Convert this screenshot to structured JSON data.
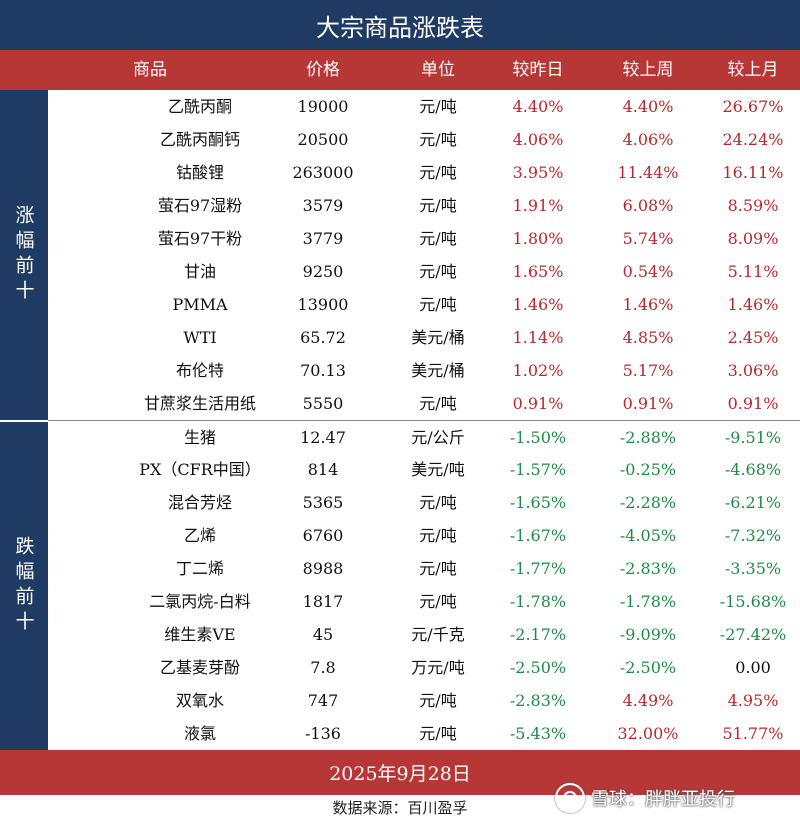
{
  "title": "大宗商品涨跌表",
  "headers": {
    "name": "商品",
    "price": "价格",
    "unit": "单位",
    "daily": "较昨日",
    "weekly": "较上周",
    "monthly": "较上月"
  },
  "groups": {
    "gainers_label": "涨幅前十",
    "losers_label": "跌幅前十"
  },
  "gainers": [
    {
      "name": "乙酰丙酮",
      "price": "19000",
      "unit": "元/吨",
      "daily": "4.40%",
      "weekly": "4.40%",
      "monthly": "26.67%"
    },
    {
      "name": "乙酰丙酮钙",
      "price": "20500",
      "unit": "元/吨",
      "daily": "4.06%",
      "weekly": "4.06%",
      "monthly": "24.24%"
    },
    {
      "name": "钴酸锂",
      "price": "263000",
      "unit": "元/吨",
      "daily": "3.95%",
      "weekly": "11.44%",
      "monthly": "16.11%"
    },
    {
      "name": "萤石97湿粉",
      "price": "3579",
      "unit": "元/吨",
      "daily": "1.91%",
      "weekly": "6.08%",
      "monthly": "8.59%"
    },
    {
      "name": "萤石97干粉",
      "price": "3779",
      "unit": "元/吨",
      "daily": "1.80%",
      "weekly": "5.74%",
      "monthly": "8.09%"
    },
    {
      "name": "甘油",
      "price": "9250",
      "unit": "元/吨",
      "daily": "1.65%",
      "weekly": "0.54%",
      "monthly": "5.11%"
    },
    {
      "name": "PMMA",
      "price": "13900",
      "unit": "元/吨",
      "daily": "1.46%",
      "weekly": "1.46%",
      "monthly": "1.46%"
    },
    {
      "name": "WTI",
      "price": "65.72",
      "unit": "美元/桶",
      "daily": "1.14%",
      "weekly": "4.85%",
      "monthly": "2.45%"
    },
    {
      "name": "布伦特",
      "price": "70.13",
      "unit": "美元/桶",
      "daily": "1.02%",
      "weekly": "5.17%",
      "monthly": "3.06%"
    },
    {
      "name": "甘蔗浆生活用纸",
      "price": "5550",
      "unit": "元/吨",
      "daily": "0.91%",
      "weekly": "0.91%",
      "monthly": "0.91%"
    }
  ],
  "losers": [
    {
      "name": "生猪",
      "price": "12.47",
      "unit": "元/公斤",
      "daily": "-1.50%",
      "weekly": "-2.88%",
      "monthly": "-9.51%"
    },
    {
      "name": "PX（CFR中国）",
      "price": "814",
      "unit": "美元/吨",
      "daily": "-1.57%",
      "weekly": "-0.25%",
      "monthly": "-4.68%"
    },
    {
      "name": "混合芳烃",
      "price": "5365",
      "unit": "元/吨",
      "daily": "-1.65%",
      "weekly": "-2.28%",
      "monthly": "-6.21%"
    },
    {
      "name": "乙烯",
      "price": "6760",
      "unit": "元/吨",
      "daily": "-1.67%",
      "weekly": "-4.05%",
      "monthly": "-7.32%"
    },
    {
      "name": "丁二烯",
      "price": "8988",
      "unit": "元/吨",
      "daily": "-1.77%",
      "weekly": "-2.83%",
      "monthly": "-3.35%"
    },
    {
      "name": "二氯丙烷-白料",
      "price": "1817",
      "unit": "元/吨",
      "daily": "-1.78%",
      "weekly": "-1.78%",
      "monthly": "-15.68%"
    },
    {
      "name": "维生素VE",
      "price": "45",
      "unit": "元/千克",
      "daily": "-2.17%",
      "weekly": "-9.09%",
      "monthly": "-27.42%"
    },
    {
      "name": "乙基麦芽酚",
      "price": "7.8",
      "unit": "万元/吨",
      "daily": "-2.50%",
      "weekly": "-2.50%",
      "monthly": "0.00"
    },
    {
      "name": "双氧水",
      "price": "747",
      "unit": "元/吨",
      "daily": "-2.83%",
      "weekly": "4.49%",
      "monthly": "4.95%"
    },
    {
      "name": "液氯",
      "price": "-136",
      "unit": "元/吨",
      "daily": "-5.43%",
      "weekly": "32.00%",
      "monthly": "51.77%"
    }
  ],
  "date": "2025年9月28日",
  "source": "数据来源：百川盈孚",
  "watermark_text": "雪球：胖胖亚投行",
  "colors": {
    "navy": "#1f3a63",
    "red_band": "#b73737",
    "positive": "#b8282c",
    "negative": "#1d8c46"
  }
}
